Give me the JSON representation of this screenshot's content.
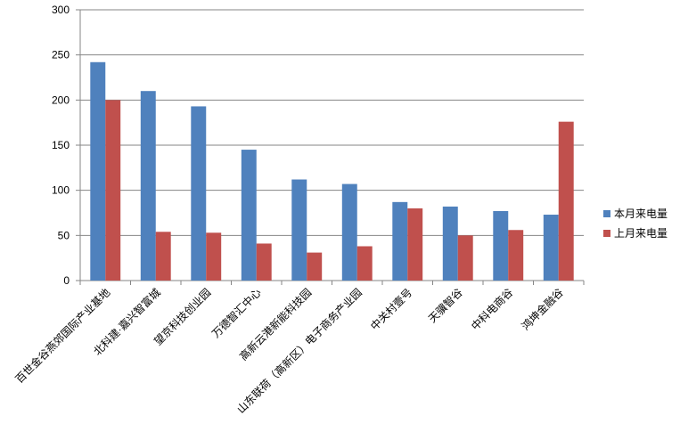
{
  "chart_data": {
    "type": "bar",
    "categories": [
      "百世金谷燕郊国际产业基地",
      "北科建·嘉兴智富城",
      "望京科技创业园",
      "万德智汇中心",
      "高新云港新能科技园",
      "山东联荷（高新区）电子商务产业园",
      "中关村壹号",
      "天骥智谷",
      "中科电商谷",
      "鸿坤金融谷"
    ],
    "series": [
      {
        "name": "本月来电量",
        "color": "#4f81bd",
        "values": [
          242,
          210,
          193,
          145,
          112,
          107,
          87,
          82,
          77,
          73
        ]
      },
      {
        "name": "上月来电量",
        "color": "#c0504d",
        "values": [
          200,
          54,
          53,
          41,
          31,
          38,
          80,
          50,
          56,
          176
        ]
      }
    ],
    "ylim": [
      0,
      300
    ],
    "yticks": [
      0,
      50,
      100,
      150,
      200,
      250,
      300
    ],
    "grid": true,
    "legend": "right"
  }
}
